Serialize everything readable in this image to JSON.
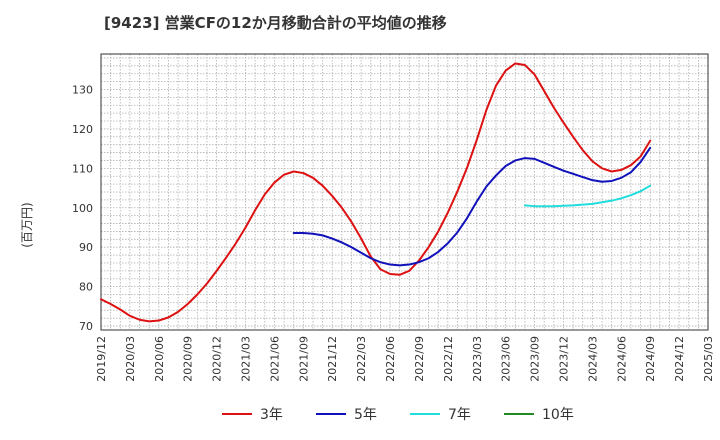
{
  "chart_data": {
    "type": "line",
    "title": "[9423]  営業CFの12か月移動合計の平均値の推移",
    "xlabel": "",
    "ylabel": "(百万円)",
    "ylim": [
      69,
      139
    ],
    "yticks": [
      70,
      80,
      90,
      100,
      110,
      120,
      130
    ],
    "xlim": [
      "2019-12",
      "2025-03"
    ],
    "xticks": [
      "2019/12",
      "2020/03",
      "2020/06",
      "2020/09",
      "2020/12",
      "2021/03",
      "2021/06",
      "2021/09",
      "2021/12",
      "2022/03",
      "2022/06",
      "2022/09",
      "2022/12",
      "2023/03",
      "2023/06",
      "2023/09",
      "2023/12",
      "2024/03",
      "2024/06",
      "2024/09",
      "2024/12",
      "2025/03"
    ],
    "grid": true,
    "legend": "bottom",
    "series": [
      {
        "name": "3年",
        "color": "#dd1111",
        "points": [
          [
            "2019-12",
            76.8
          ],
          [
            "2020-01",
            75.6
          ],
          [
            "2020-02",
            74.2
          ],
          [
            "2020-03",
            72.6
          ],
          [
            "2020-04",
            71.6
          ],
          [
            "2020-05",
            71.2
          ],
          [
            "2020-06",
            71.4
          ],
          [
            "2020-07",
            72.2
          ],
          [
            "2020-08",
            73.6
          ],
          [
            "2020-09",
            75.6
          ],
          [
            "2020-10",
            78.0
          ],
          [
            "2020-11",
            80.8
          ],
          [
            "2020-12",
            84.0
          ],
          [
            "2021-01",
            87.4
          ],
          [
            "2021-02",
            91.0
          ],
          [
            "2021-03",
            95.0
          ],
          [
            "2021-04",
            99.4
          ],
          [
            "2021-05",
            103.4
          ],
          [
            "2021-06",
            106.4
          ],
          [
            "2021-07",
            108.4
          ],
          [
            "2021-08",
            109.2
          ],
          [
            "2021-09",
            108.8
          ],
          [
            "2021-10",
            107.6
          ],
          [
            "2021-11",
            105.6
          ],
          [
            "2021-12",
            103.0
          ],
          [
            "2022-01",
            100.0
          ],
          [
            "2022-02",
            96.4
          ],
          [
            "2022-03",
            92.2
          ],
          [
            "2022-04",
            87.6
          ],
          [
            "2022-05",
            84.4
          ],
          [
            "2022-06",
            83.2
          ],
          [
            "2022-07",
            83.0
          ],
          [
            "2022-08",
            84.0
          ],
          [
            "2022-09",
            86.6
          ],
          [
            "2022-10",
            90.0
          ],
          [
            "2022-11",
            94.0
          ],
          [
            "2022-12",
            98.8
          ],
          [
            "2023-01",
            104.2
          ],
          [
            "2023-02",
            110.2
          ],
          [
            "2023-03",
            117.2
          ],
          [
            "2023-04",
            124.8
          ],
          [
            "2023-05",
            131.0
          ],
          [
            "2023-06",
            134.8
          ],
          [
            "2023-07",
            136.6
          ],
          [
            "2023-08",
            136.2
          ],
          [
            "2023-09",
            133.8
          ],
          [
            "2023-10",
            129.6
          ],
          [
            "2023-11",
            125.4
          ],
          [
            "2023-12",
            121.6
          ],
          [
            "2024-01",
            118.0
          ],
          [
            "2024-02",
            114.6
          ],
          [
            "2024-03",
            111.8
          ],
          [
            "2024-04",
            110.0
          ],
          [
            "2024-05",
            109.2
          ],
          [
            "2024-06",
            109.6
          ],
          [
            "2024-07",
            110.8
          ],
          [
            "2024-08",
            113.0
          ],
          [
            "2024-09",
            117.0
          ]
        ]
      },
      {
        "name": "5年",
        "color": "#1111bb",
        "points": [
          [
            "2021-08",
            93.6
          ],
          [
            "2021-09",
            93.6
          ],
          [
            "2021-10",
            93.4
          ],
          [
            "2021-11",
            93.0
          ],
          [
            "2021-12",
            92.2
          ],
          [
            "2022-01",
            91.2
          ],
          [
            "2022-02",
            90.0
          ],
          [
            "2022-03",
            88.6
          ],
          [
            "2022-04",
            87.2
          ],
          [
            "2022-05",
            86.2
          ],
          [
            "2022-06",
            85.6
          ],
          [
            "2022-07",
            85.4
          ],
          [
            "2022-08",
            85.6
          ],
          [
            "2022-09",
            86.2
          ],
          [
            "2022-10",
            87.2
          ],
          [
            "2022-11",
            88.8
          ],
          [
            "2022-12",
            91.0
          ],
          [
            "2023-01",
            93.8
          ],
          [
            "2023-02",
            97.4
          ],
          [
            "2023-03",
            101.6
          ],
          [
            "2023-04",
            105.4
          ],
          [
            "2023-05",
            108.2
          ],
          [
            "2023-06",
            110.6
          ],
          [
            "2023-07",
            112.0
          ],
          [
            "2023-08",
            112.6
          ],
          [
            "2023-09",
            112.4
          ],
          [
            "2023-10",
            111.4
          ],
          [
            "2023-11",
            110.4
          ],
          [
            "2023-12",
            109.4
          ],
          [
            "2024-01",
            108.6
          ],
          [
            "2024-02",
            107.8
          ],
          [
            "2024-03",
            107.0
          ],
          [
            "2024-04",
            106.6
          ],
          [
            "2024-05",
            106.8
          ],
          [
            "2024-06",
            107.6
          ],
          [
            "2024-07",
            109.0
          ],
          [
            "2024-08",
            111.6
          ],
          [
            "2024-09",
            115.2
          ]
        ]
      },
      {
        "name": "7年",
        "color": "#22dddd",
        "points": [
          [
            "2023-08",
            100.6
          ],
          [
            "2023-09",
            100.4
          ],
          [
            "2023-10",
            100.4
          ],
          [
            "2023-11",
            100.4
          ],
          [
            "2023-12",
            100.5
          ],
          [
            "2024-01",
            100.6
          ],
          [
            "2024-02",
            100.8
          ],
          [
            "2024-03",
            101.0
          ],
          [
            "2024-04",
            101.4
          ],
          [
            "2024-05",
            101.8
          ],
          [
            "2024-06",
            102.4
          ],
          [
            "2024-07",
            103.2
          ],
          [
            "2024-08",
            104.2
          ],
          [
            "2024-09",
            105.6
          ]
        ]
      },
      {
        "name": "10年",
        "color": "#228822",
        "points": []
      }
    ]
  }
}
